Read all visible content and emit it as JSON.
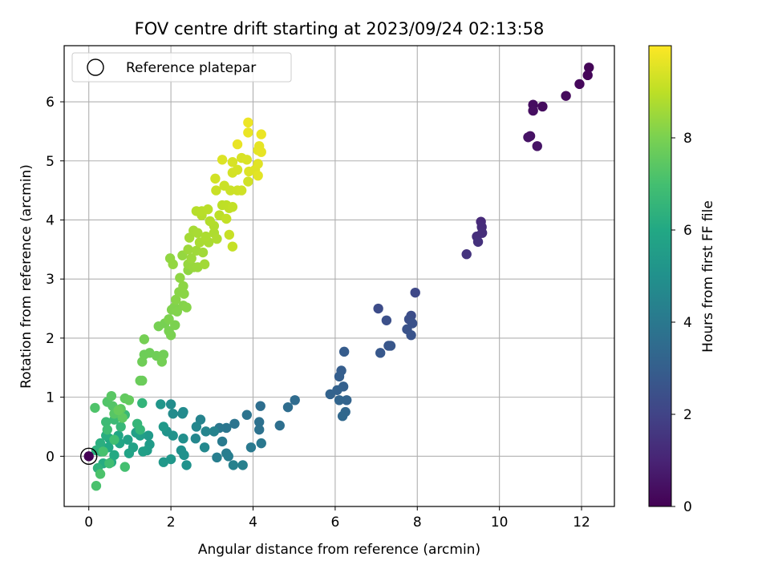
{
  "chart_data": {
    "type": "scatter",
    "title": "FOV centre drift starting at 2023/09/24 02:13:58",
    "xlabel": "Angular distance from reference (arcmin)",
    "ylabel": "Rotation from reference (arcmin)",
    "xlim": [
      -0.6,
      12.8
    ],
    "ylim": [
      -0.85,
      6.95
    ],
    "xticks": [
      0,
      2,
      4,
      6,
      8,
      10,
      12
    ],
    "yticks": [
      0,
      1,
      2,
      3,
      4,
      5,
      6
    ],
    "grid": true,
    "legend": {
      "position": "top-left",
      "entries": [
        "Reference platepar"
      ]
    },
    "reference_point": {
      "x": 0,
      "y": 0
    },
    "colorbar": {
      "label": "Hours from first FF file",
      "range": [
        0,
        10
      ],
      "ticks": [
        0,
        2,
        4,
        6,
        8
      ],
      "colormap": "viridis"
    },
    "series": [
      {
        "color_dimension": "hours",
        "points": [
          [
            12.18,
            6.58,
            0.1
          ],
          [
            12.15,
            6.45,
            0.15
          ],
          [
            11.95,
            6.3,
            0.2
          ],
          [
            11.62,
            6.1,
            0.25
          ],
          [
            11.05,
            5.92,
            0.3
          ],
          [
            10.82,
            5.95,
            0.35
          ],
          [
            10.82,
            5.85,
            0.4
          ],
          [
            10.75,
            5.42,
            0.45
          ],
          [
            10.7,
            5.4,
            0.5
          ],
          [
            10.92,
            5.25,
            0.55
          ],
          [
            9.55,
            3.97,
            1.2
          ],
          [
            9.57,
            3.88,
            1.25
          ],
          [
            9.58,
            3.78,
            1.3
          ],
          [
            9.45,
            3.72,
            1.35
          ],
          [
            9.48,
            3.63,
            1.4
          ],
          [
            9.2,
            3.42,
            1.5
          ],
          [
            7.95,
            2.77,
            2.2
          ],
          [
            7.05,
            2.5,
            2.3
          ],
          [
            7.85,
            2.38,
            2.35
          ],
          [
            7.8,
            2.32,
            2.4
          ],
          [
            7.25,
            2.3,
            2.45
          ],
          [
            7.88,
            2.25,
            2.5
          ],
          [
            7.75,
            2.15,
            2.55
          ],
          [
            7.85,
            2.05,
            2.6
          ],
          [
            7.3,
            1.87,
            2.65
          ],
          [
            7.35,
            1.87,
            2.7
          ],
          [
            7.1,
            1.75,
            2.75
          ],
          [
            6.22,
            1.77,
            2.9
          ],
          [
            6.15,
            1.45,
            2.95
          ],
          [
            6.1,
            1.35,
            3.0
          ],
          [
            6.2,
            1.18,
            3.05
          ],
          [
            6.05,
            1.12,
            3.1
          ],
          [
            5.88,
            1.05,
            3.15
          ],
          [
            6.28,
            0.95,
            3.2
          ],
          [
            6.1,
            0.95,
            3.25
          ],
          [
            6.25,
            0.75,
            3.3
          ],
          [
            6.18,
            0.68,
            3.35
          ],
          [
            5.02,
            0.95,
            3.5
          ],
          [
            4.85,
            0.83,
            3.55
          ],
          [
            4.18,
            0.85,
            3.6
          ],
          [
            4.65,
            0.52,
            3.65
          ],
          [
            4.15,
            0.58,
            3.7
          ],
          [
            4.15,
            0.45,
            3.75
          ],
          [
            3.85,
            0.7,
            3.8
          ],
          [
            3.55,
            0.55,
            3.85
          ],
          [
            3.35,
            0.48,
            3.9
          ],
          [
            3.18,
            0.48,
            3.95
          ],
          [
            4.2,
            0.22,
            4.0
          ],
          [
            3.95,
            0.15,
            4.05
          ],
          [
            3.25,
            0.25,
            4.1
          ],
          [
            3.35,
            0.05,
            4.15
          ],
          [
            3.4,
            0.0,
            4.2
          ],
          [
            3.12,
            -0.02,
            4.25
          ],
          [
            3.75,
            -0.15,
            4.3
          ],
          [
            3.52,
            -0.15,
            4.35
          ],
          [
            3.05,
            0.42,
            4.4
          ],
          [
            2.72,
            0.62,
            4.45
          ],
          [
            2.85,
            0.42,
            4.5
          ],
          [
            2.62,
            0.5,
            4.55
          ],
          [
            2.6,
            0.3,
            4.6
          ],
          [
            2.82,
            0.15,
            4.65
          ],
          [
            2.28,
            0.72,
            4.7
          ],
          [
            2.3,
            0.75,
            4.75
          ],
          [
            2.05,
            0.72,
            4.8
          ],
          [
            2.0,
            0.88,
            4.85
          ],
          [
            2.3,
            0.3,
            4.9
          ],
          [
            2.25,
            0.1,
            4.95
          ],
          [
            2.32,
            0.02,
            5.0
          ],
          [
            2.38,
            -0.15,
            5.05
          ],
          [
            2.05,
            0.35,
            5.1
          ],
          [
            1.9,
            0.42,
            5.15
          ],
          [
            1.75,
            0.88,
            5.2
          ],
          [
            2.0,
            -0.05,
            5.25
          ],
          [
            1.82,
            -0.1,
            5.3
          ],
          [
            1.82,
            0.5,
            5.35
          ],
          [
            1.45,
            0.35,
            5.4
          ],
          [
            1.48,
            0.2,
            5.45
          ],
          [
            1.42,
            0.1,
            5.5
          ],
          [
            1.25,
            0.35,
            5.55
          ],
          [
            1.32,
            0.08,
            5.6
          ],
          [
            1.15,
            0.4,
            5.65
          ],
          [
            1.08,
            0.15,
            5.7
          ],
          [
            0.95,
            0.28,
            5.75
          ],
          [
            0.98,
            0.05,
            5.8
          ],
          [
            0.75,
            0.22,
            5.85
          ],
          [
            0.72,
            0.35,
            5.9
          ],
          [
            0.5,
            0.3,
            5.95
          ],
          [
            0.48,
            0.15,
            6.0
          ],
          [
            0.62,
            0.02,
            6.05
          ],
          [
            0.55,
            -0.1,
            6.1
          ],
          [
            0.35,
            -0.12,
            6.15
          ],
          [
            0.42,
            0.35,
            6.2
          ],
          [
            0.28,
            0.22,
            6.25
          ],
          [
            0.3,
            0.08,
            6.3
          ],
          [
            0.18,
            0.1,
            6.35
          ],
          [
            0.22,
            -0.2,
            6.4
          ],
          [
            1.3,
            0.9,
            6.5
          ],
          [
            1.18,
            0.55,
            6.55
          ],
          [
            1.25,
            0.45,
            6.6
          ],
          [
            0.78,
            0.5,
            6.65
          ],
          [
            0.88,
            0.7,
            6.7
          ],
          [
            0.62,
            0.62,
            6.75
          ],
          [
            0.42,
            0.58,
            6.8
          ],
          [
            0.45,
            0.45,
            6.85
          ],
          [
            0.5,
            -0.12,
            6.9
          ],
          [
            0.62,
            0.28,
            6.95
          ],
          [
            0.88,
            -0.18,
            7.0
          ],
          [
            0.35,
            0.08,
            7.05
          ],
          [
            0.18,
            -0.5,
            7.1
          ],
          [
            0.28,
            -0.3,
            7.15
          ],
          [
            0.15,
            0.82,
            7.2
          ],
          [
            0.45,
            0.92,
            7.25
          ],
          [
            0.58,
            0.85,
            7.3
          ],
          [
            0.62,
            0.72,
            7.35
          ],
          [
            0.55,
            1.02,
            7.4
          ],
          [
            0.78,
            0.8,
            7.45
          ],
          [
            0.82,
            0.65,
            7.5
          ],
          [
            0.88,
            0.98,
            7.55
          ],
          [
            0.98,
            0.95,
            7.6
          ],
          [
            0.72,
            0.78,
            7.65
          ],
          [
            1.25,
            1.28,
            7.7
          ],
          [
            1.3,
            1.28,
            7.72
          ],
          [
            1.35,
            1.72,
            7.75
          ],
          [
            1.48,
            1.75,
            7.78
          ],
          [
            1.3,
            1.6,
            7.8
          ],
          [
            1.65,
            1.7,
            7.82
          ],
          [
            1.82,
            1.72,
            7.85
          ],
          [
            1.78,
            1.6,
            7.88
          ],
          [
            1.35,
            1.98,
            7.9
          ],
          [
            1.7,
            2.2,
            7.92
          ],
          [
            1.85,
            2.25,
            7.95
          ],
          [
            1.95,
            2.12,
            7.98
          ],
          [
            2.0,
            2.05,
            8.0
          ],
          [
            2.1,
            2.22,
            8.02
          ],
          [
            1.95,
            2.32,
            8.05
          ],
          [
            2.02,
            2.48,
            8.08
          ],
          [
            2.08,
            2.52,
            8.1
          ],
          [
            2.15,
            2.45,
            8.12
          ],
          [
            2.3,
            2.55,
            8.15
          ],
          [
            2.38,
            2.52,
            8.18
          ],
          [
            2.12,
            2.65,
            8.2
          ],
          [
            2.2,
            2.78,
            8.22
          ],
          [
            2.32,
            2.75,
            8.25
          ],
          [
            2.3,
            2.88,
            8.28
          ],
          [
            2.22,
            3.02,
            8.3
          ],
          [
            2.42,
            3.15,
            8.32
          ],
          [
            1.98,
            3.35,
            8.35
          ],
          [
            2.05,
            3.25,
            8.38
          ],
          [
            2.28,
            3.4,
            8.4
          ],
          [
            2.42,
            3.25,
            8.42
          ],
          [
            2.55,
            3.2,
            8.45
          ],
          [
            2.65,
            3.2,
            8.48
          ],
          [
            2.5,
            3.35,
            8.5
          ],
          [
            2.42,
            3.5,
            8.52
          ],
          [
            2.62,
            3.48,
            8.55
          ],
          [
            2.78,
            3.45,
            8.58
          ],
          [
            2.82,
            3.25,
            8.6
          ],
          [
            2.45,
            3.7,
            8.62
          ],
          [
            2.55,
            3.82,
            8.65
          ],
          [
            2.65,
            3.78,
            8.68
          ],
          [
            2.7,
            3.62,
            8.7
          ],
          [
            2.92,
            3.62,
            8.72
          ],
          [
            2.85,
            3.72,
            8.75
          ],
          [
            3.05,
            3.78,
            8.78
          ],
          [
            3.12,
            3.68,
            8.8
          ],
          [
            3.05,
            3.9,
            8.82
          ],
          [
            2.95,
            3.98,
            8.85
          ],
          [
            2.75,
            4.08,
            8.88
          ],
          [
            2.62,
            4.15,
            8.9
          ],
          [
            2.75,
            4.15,
            8.92
          ],
          [
            2.9,
            4.18,
            8.95
          ],
          [
            3.18,
            4.08,
            8.98
          ],
          [
            3.25,
            4.25,
            9.0
          ],
          [
            3.35,
            4.25,
            9.02
          ],
          [
            3.42,
            4.2,
            9.05
          ],
          [
            3.5,
            4.22,
            9.08
          ],
          [
            3.35,
            4.02,
            9.1
          ],
          [
            3.5,
            3.55,
            9.12
          ],
          [
            3.42,
            3.75,
            9.15
          ],
          [
            3.1,
            4.5,
            9.18
          ],
          [
            3.3,
            4.58,
            9.2
          ],
          [
            3.45,
            4.5,
            9.22
          ],
          [
            3.62,
            4.5,
            9.25
          ],
          [
            3.72,
            4.5,
            9.28
          ],
          [
            3.88,
            4.65,
            9.3
          ],
          [
            3.08,
            4.7,
            9.32
          ],
          [
            3.5,
            4.8,
            9.35
          ],
          [
            3.62,
            4.85,
            9.38
          ],
          [
            3.5,
            4.98,
            9.4
          ],
          [
            3.72,
            5.05,
            9.42
          ],
          [
            3.85,
            5.02,
            9.45
          ],
          [
            3.25,
            5.02,
            9.48
          ],
          [
            3.9,
            4.82,
            9.5
          ],
          [
            4.05,
            4.85,
            9.52
          ],
          [
            4.12,
            4.95,
            9.55
          ],
          [
            4.12,
            4.75,
            9.58
          ],
          [
            4.12,
            5.18,
            9.6
          ],
          [
            4.15,
            5.25,
            9.62
          ],
          [
            4.2,
            5.15,
            9.65
          ],
          [
            3.62,
            5.28,
            9.68
          ],
          [
            3.88,
            5.48,
            9.7
          ],
          [
            4.2,
            5.45,
            9.72
          ],
          [
            3.88,
            5.65,
            9.75
          ],
          [
            0.0,
            0.0,
            0.0
          ]
        ]
      }
    ]
  }
}
